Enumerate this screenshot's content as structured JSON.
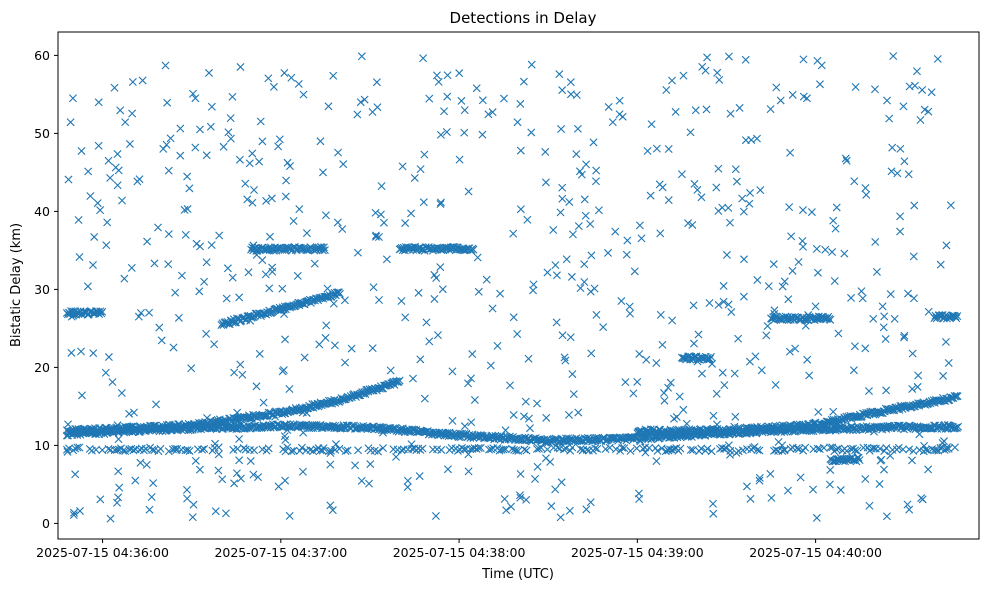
{
  "chart_data": {
    "type": "scatter",
    "title": "Detections in Delay",
    "xlabel": "Time (UTC)",
    "ylabel": "Bistatic Delay (km)",
    "marker": "x",
    "color": "#1f77b4",
    "grid": false,
    "xlim": [
      "2025-07-15 04:35:45",
      "2025-07-15 04:40:55"
    ],
    "ylim": [
      -2,
      63
    ],
    "xticks": [
      "2025-07-15 04:36:00",
      "2025-07-15 04:37:00",
      "2025-07-15 04:38:00",
      "2025-07-15 04:39:00",
      "2025-07-15 04:40:00"
    ],
    "yticks": [
      0,
      10,
      20,
      30,
      40,
      50,
      60
    ],
    "time_range": [
      "2025-07-15 04:35:48",
      "2025-07-15 04:40:48"
    ],
    "series": [
      {
        "description_visible": "",
        "tracks": [
          {
            "kind": "line",
            "t": [
              "2025-07-15 04:35:48",
              "2025-07-15 04:36:30",
              "2025-07-15 04:37:00",
              "2025-07-15 04:37:30",
              "2025-07-15 04:38:00",
              "2025-07-15 04:38:30",
              "2025-07-15 04:39:00",
              "2025-07-15 04:39:30",
              "2025-07-15 04:40:00",
              "2025-07-15 04:40:30",
              "2025-07-15 04:40:48"
            ],
            "y": [
              11.5,
              12.2,
              12.5,
              12.3,
              11.3,
              10.6,
              10.9,
              11.6,
              12.1,
              12.3,
              12.4
            ]
          },
          {
            "kind": "line",
            "t": [
              "2025-07-15 04:35:48",
              "2025-07-15 04:36:30",
              "2025-07-15 04:37:00",
              "2025-07-15 04:37:20",
              "2025-07-15 04:37:40"
            ],
            "y": [
              11.8,
              12.6,
              14.2,
              15.8,
              18.2
            ]
          },
          {
            "kind": "line",
            "t": [
              "2025-07-15 04:36:40",
              "2025-07-15 04:37:00",
              "2025-07-15 04:37:20"
            ],
            "y": [
              25.5,
              27.5,
              29.5
            ]
          },
          {
            "kind": "line",
            "t": [
              "2025-07-15 04:39:00",
              "2025-07-15 04:39:30",
              "2025-07-15 04:40:00",
              "2025-07-15 04:40:20",
              "2025-07-15 04:40:48"
            ],
            "y": [
              11.8,
              11.9,
              12.6,
              14.2,
              16.2
            ]
          },
          {
            "kind": "line",
            "t": [
              "2025-07-15 04:35:48",
              "2025-07-15 04:40:48"
            ],
            "y": [
              9.5,
              9.5
            ],
            "sparse": true
          },
          {
            "kind": "line",
            "t": [
              "2025-07-15 04:35:48",
              "2025-07-15 04:36:00"
            ],
            "y": [
              27,
              27
            ]
          },
          {
            "kind": "line",
            "t": [
              "2025-07-15 04:36:50",
              "2025-07-15 04:37:15"
            ],
            "y": [
              35.2,
              35.2
            ]
          },
          {
            "kind": "line",
            "t": [
              "2025-07-15 04:37:40",
              "2025-07-15 04:38:05"
            ],
            "y": [
              35.2,
              35.2
            ]
          },
          {
            "kind": "line",
            "t": [
              "2025-07-15 04:39:15",
              "2025-07-15 04:39:25"
            ],
            "y": [
              21.2,
              21.2
            ]
          },
          {
            "kind": "line",
            "t": [
              "2025-07-15 04:39:45",
              "2025-07-15 04:40:05"
            ],
            "y": [
              26.3,
              26.3
            ]
          },
          {
            "kind": "line",
            "t": [
              "2025-07-15 04:40:05",
              "2025-07-15 04:40:15"
            ],
            "y": [
              8.2,
              8.2
            ]
          },
          {
            "kind": "line",
            "t": [
              "2025-07-15 04:40:40",
              "2025-07-15 04:40:48"
            ],
            "y": [
              26.5,
              26.5
            ]
          }
        ],
        "clutter": {
          "count": 700,
          "y_range": [
            0.5,
            60
          ],
          "distribution": "uniform"
        }
      }
    ]
  }
}
